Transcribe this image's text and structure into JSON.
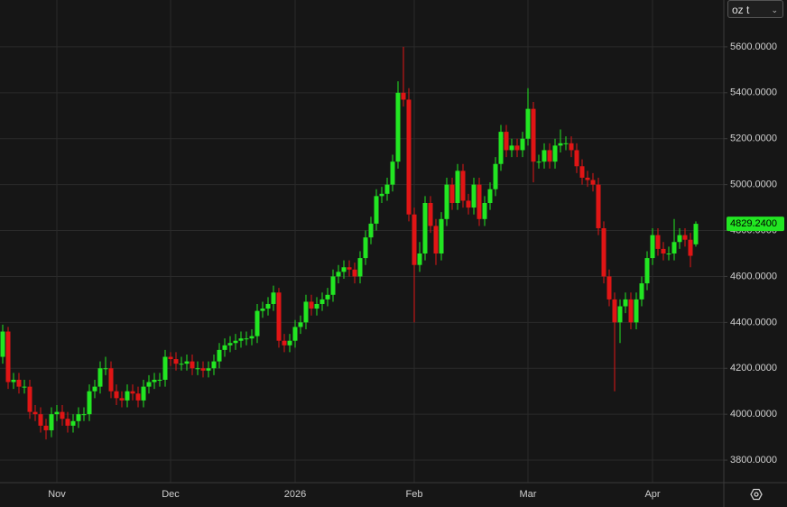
{
  "chart_data": {
    "type": "candlestick",
    "unit_selector": "oz t",
    "up_color": "#22e622",
    "down_color": "#e01515",
    "ylim": [
      3702,
      5804
    ],
    "yticks": [
      {
        "value": 3800,
        "label": "3800.0000"
      },
      {
        "value": 4000,
        "label": "4000.0000"
      },
      {
        "value": 4200,
        "label": "4200.0000"
      },
      {
        "value": 4400,
        "label": "4400.0000"
      },
      {
        "value": 4600,
        "label": "4600.0000"
      },
      {
        "value": 4800,
        "label": "4800.0000"
      },
      {
        "value": 5000,
        "label": "5000.0000"
      },
      {
        "value": 5200,
        "label": "5200.0000"
      },
      {
        "value": 5400,
        "label": "5400.0000"
      },
      {
        "value": 5600,
        "label": "5600.0000"
      }
    ],
    "grid": true,
    "last_price": 4829.24,
    "last_price_label": "4829.2400",
    "categories": [
      null,
      null,
      null,
      null,
      null,
      null,
      null,
      null,
      null,
      null,
      "Nov",
      null,
      null,
      null,
      null,
      null,
      null,
      null,
      null,
      null,
      null,
      null,
      null,
      null,
      null,
      null,
      null,
      null,
      null,
      null,
      null,
      "Dec",
      null,
      null,
      null,
      null,
      null,
      null,
      null,
      null,
      null,
      null,
      null,
      null,
      null,
      null,
      null,
      null,
      null,
      null,
      null,
      null,
      null,
      null,
      "2026",
      null,
      null,
      null,
      null,
      null,
      null,
      null,
      null,
      null,
      null,
      null,
      null,
      null,
      null,
      null,
      null,
      null,
      null,
      null,
      null,
      null,
      "Feb",
      null,
      null,
      null,
      null,
      null,
      null,
      null,
      null,
      null,
      null,
      null,
      null,
      null,
      null,
      null,
      null,
      null,
      null,
      null,
      null,
      "Mar",
      null,
      null,
      null,
      null,
      null,
      null,
      null,
      null,
      null,
      null,
      null,
      null,
      null,
      null,
      null,
      null,
      null,
      null,
      null,
      null,
      null,
      null,
      "Apr",
      null,
      null,
      null,
      null,
      null,
      null,
      null,
      null
    ],
    "open": [
      4250,
      4360,
      4140,
      4150,
      4120,
      4120,
      4010,
      4000,
      3950,
      3930,
      4000,
      4010,
      3980,
      3950,
      3970,
      4000,
      4000,
      4100,
      4120,
      4200,
      4200,
      4100,
      4070,
      4060,
      4100,
      4090,
      4060,
      4120,
      4140,
      4150,
      4150,
      4250,
      4240,
      4220,
      4220,
      4230,
      4200,
      4200,
      4190,
      4200,
      4230,
      4280,
      4300,
      4310,
      4320,
      4330,
      4330,
      4340,
      4450,
      4460,
      4480,
      4530,
      4320,
      4300,
      4320,
      4380,
      4400,
      4490,
      4460,
      4480,
      4500,
      4520,
      4600,
      4620,
      4640,
      4630,
      4600,
      4680,
      4770,
      4830,
      4950,
      4960,
      5000,
      5100,
      5400,
      5370,
      4870,
      4650,
      4700,
      4920,
      4820,
      4700,
      4850,
      5000,
      4920,
      5060,
      4930,
      4900,
      5000,
      4850,
      4920,
      4980,
      5090,
      5230,
      5150,
      5170,
      5150,
      5200,
      5330,
      5100,
      5100,
      5150,
      5100,
      5170,
      5180,
      5180,
      5150,
      5080,
      5030,
      5020,
      5000,
      4810,
      4600,
      4500,
      4400,
      4470,
      4500,
      4400,
      4500,
      4570,
      4680,
      4780,
      4720,
      4700,
      4700,
      4750,
      4780,
      4760,
      4740
    ],
    "high": [
      4390,
      4380,
      4180,
      4180,
      4150,
      4150,
      4040,
      4030,
      3980,
      4030,
      4040,
      4040,
      4010,
      4000,
      4030,
      4030,
      4130,
      4150,
      4230,
      4250,
      4230,
      4130,
      4100,
      4130,
      4130,
      4120,
      4150,
      4170,
      4180,
      4180,
      4280,
      4270,
      4270,
      4250,
      4260,
      4260,
      4230,
      4230,
      4230,
      4260,
      4310,
      4330,
      4340,
      4350,
      4360,
      4360,
      4370,
      4480,
      4490,
      4510,
      4560,
      4550,
      4350,
      4350,
      4410,
      4430,
      4520,
      4520,
      4510,
      4530,
      4550,
      4630,
      4650,
      4670,
      4670,
      4660,
      4710,
      4800,
      4860,
      4980,
      4990,
      5030,
      5130,
      5450,
      5600,
      5420,
      4900,
      4750,
      4950,
      4950,
      4850,
      4880,
      5030,
      5030,
      5090,
      5090,
      4960,
      5030,
      5030,
      4950,
      5010,
      5120,
      5260,
      5260,
      5200,
      5200,
      5230,
      5420,
      5360,
      5130,
      5180,
      5180,
      5200,
      5240,
      5210,
      5210,
      5180,
      5110,
      5060,
      5050,
      5030,
      4840,
      4630,
      4530,
      4500,
      4530,
      4530,
      4530,
      4600,
      4710,
      4810,
      4810,
      4750,
      4730,
      4850,
      4810,
      4810,
      4790,
      4840
    ],
    "low": [
      4220,
      4110,
      4110,
      4090,
      4090,
      3980,
      3970,
      3920,
      3890,
      3900,
      3970,
      3950,
      3920,
      3920,
      3940,
      3970,
      3970,
      4070,
      4090,
      4170,
      4070,
      4040,
      4030,
      4030,
      4060,
      4030,
      4030,
      4090,
      4110,
      4120,
      4120,
      4210,
      4190,
      4190,
      4190,
      4170,
      4170,
      4160,
      4160,
      4170,
      4200,
      4250,
      4270,
      4280,
      4290,
      4300,
      4300,
      4310,
      4420,
      4430,
      4450,
      4290,
      4270,
      4270,
      4290,
      4350,
      4370,
      4430,
      4430,
      4450,
      4470,
      4490,
      4570,
      4590,
      4600,
      4570,
      4570,
      4650,
      4740,
      4800,
      4920,
      4930,
      4970,
      5070,
      5340,
      4840,
      4400,
      4620,
      4670,
      4790,
      4650,
      4670,
      4820,
      4890,
      4890,
      4900,
      4870,
      4870,
      4820,
      4820,
      4890,
      4950,
      5060,
      5120,
      5120,
      5120,
      5120,
      5170,
      5010,
      5070,
      5070,
      5070,
      5070,
      5140,
      5150,
      5120,
      5050,
      5000,
      4990,
      4970,
      4780,
      4570,
      4470,
      4100,
      4310,
      4440,
      4370,
      4370,
      4470,
      4540,
      4650,
      4690,
      4670,
      4670,
      4670,
      4720,
      4730,
      4640,
      4730
    ],
    "close": [
      4360,
      4140,
      4150,
      4120,
      4120,
      4010,
      4000,
      3950,
      3930,
      4000,
      4010,
      3980,
      3950,
      3970,
      4000,
      4000,
      4100,
      4120,
      4200,
      4200,
      4100,
      4070,
      4060,
      4100,
      4090,
      4060,
      4120,
      4140,
      4150,
      4150,
      4250,
      4240,
      4220,
      4220,
      4230,
      4200,
      4200,
      4190,
      4200,
      4230,
      4280,
      4300,
      4310,
      4320,
      4330,
      4330,
      4340,
      4450,
      4460,
      4480,
      4530,
      4320,
      4300,
      4320,
      4380,
      4400,
      4490,
      4460,
      4480,
      4500,
      4520,
      4600,
      4620,
      4640,
      4630,
      4600,
      4680,
      4770,
      4830,
      4950,
      4960,
      5000,
      5100,
      5400,
      5370,
      4870,
      4650,
      4700,
      4920,
      4820,
      4700,
      4850,
      5000,
      4920,
      5060,
      4930,
      4900,
      5000,
      4850,
      4920,
      4980,
      5090,
      5230,
      5150,
      5170,
      5150,
      5200,
      5330,
      5100,
      5100,
      5150,
      5100,
      5170,
      5180,
      5180,
      5150,
      5080,
      5030,
      5020,
      5000,
      4810,
      4600,
      4500,
      4400,
      4470,
      4500,
      4400,
      4500,
      4570,
      4680,
      4780,
      4720,
      4700,
      4700,
      4750,
      4780,
      4760,
      4690,
      4829.24
    ]
  }
}
